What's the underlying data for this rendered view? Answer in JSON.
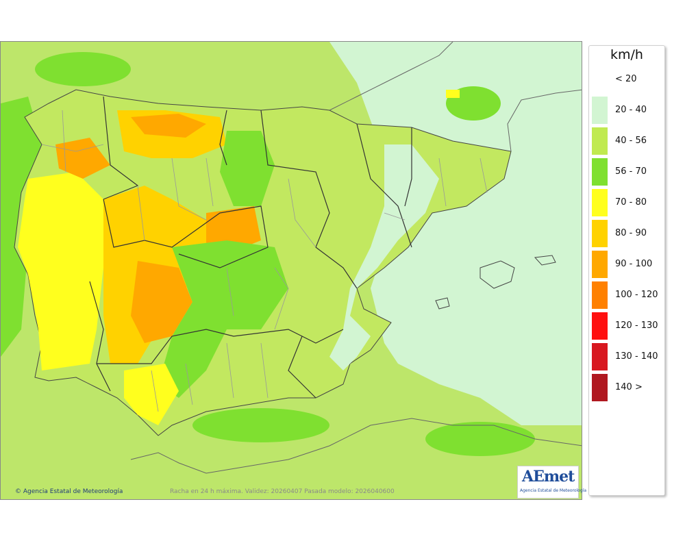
{
  "legend": {
    "unit": "km/h",
    "items": [
      {
        "label": "< 20",
        "color": "#ffffff"
      },
      {
        "label": "20 - 40",
        "color": "#d2f5d2"
      },
      {
        "label": "40 - 56",
        "color": "#c0ea50"
      },
      {
        "label": "56 - 70",
        "color": "#7fe030"
      },
      {
        "label": "70 - 80",
        "color": "#ffff1e"
      },
      {
        "label": "80 - 90",
        "color": "#ffd200"
      },
      {
        "label": "90 - 100",
        "color": "#ffa800"
      },
      {
        "label": "100 - 120",
        "color": "#ff8000"
      },
      {
        "label": "120 - 130",
        "color": "#ff1010"
      },
      {
        "label": "130 - 140",
        "color": "#d81820"
      },
      {
        "label": "140 >",
        "color": "#b01820"
      }
    ]
  },
  "footer": {
    "credit": "Agencia Estatal de Meteorología",
    "caption": "Racha en 24 h máxima. Validez: 20260407 Pasada modelo: 2026040600"
  },
  "logo": {
    "mark": "AEmet",
    "subtitle": "Agencia Estatal de Meteorología"
  }
}
